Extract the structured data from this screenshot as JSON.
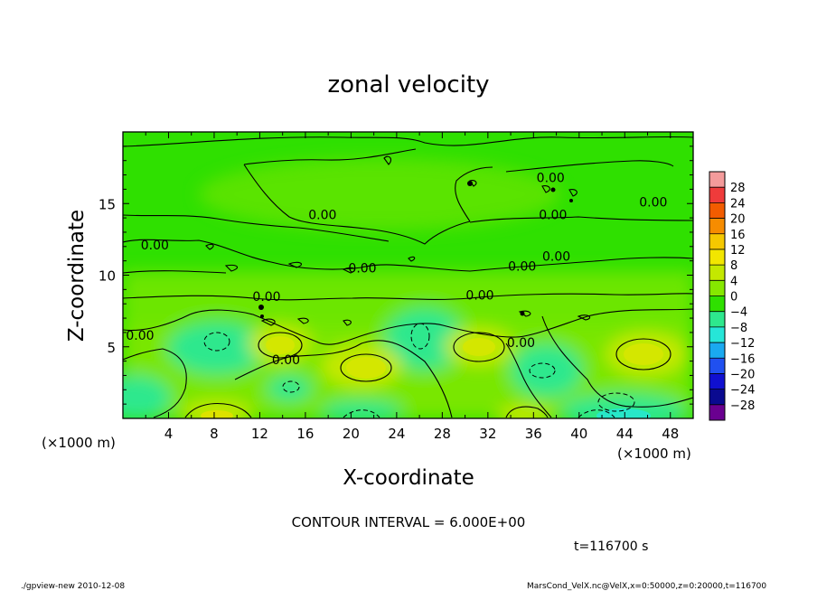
{
  "chart_data": {
    "type": "heatmap",
    "title": "zonal velocity",
    "xlabel": "X-coordinate",
    "ylabel": "Z-coordinate",
    "x_unit_label": "(×1000 m)",
    "y_unit_label": "(×1000 m)",
    "x_ticks": [
      4,
      8,
      12,
      16,
      20,
      24,
      28,
      32,
      36,
      40,
      44,
      48
    ],
    "y_ticks": [
      5,
      10,
      15
    ],
    "xlim": [
      0,
      50
    ],
    "ylim": [
      0,
      20
    ],
    "colorbar": {
      "levels": [
        "28",
        "24",
        "20",
        "16",
        "12",
        "8",
        "4",
        "0",
        "−4",
        "−8",
        "−12",
        "−16",
        "−20",
        "−24",
        "−28"
      ],
      "colors": [
        "#f49b9b",
        "#ef3b3b",
        "#f25c00",
        "#f68c00",
        "#f5c800",
        "#f2e600",
        "#c4e800",
        "#86e800",
        "#2fe000",
        "#2ee88d",
        "#26e6d8",
        "#1aa9f0",
        "#2050f0",
        "#1010d0",
        "#0a0a90",
        "#6a0090"
      ]
    },
    "contour_labels": [
      {
        "text": "0.00",
        "x": 46.5,
        "y": 14.8
      },
      {
        "text": "0.00",
        "x": 17.5,
        "y": 13.9
      },
      {
        "text": "0.00",
        "x": 2.8,
        "y": 11.8
      },
      {
        "text": "0.00",
        "x": 21.0,
        "y": 10.2
      },
      {
        "text": "0.00",
        "x": 38.0,
        "y": 11.0
      },
      {
        "text": "0.00",
        "x": 37.7,
        "y": 13.9
      },
      {
        "text": "0.00",
        "x": 35.0,
        "y": 10.3
      },
      {
        "text": "0.00",
        "x": 12.6,
        "y": 8.2
      },
      {
        "text": "0.00",
        "x": 31.3,
        "y": 8.3
      },
      {
        "text": "0.00",
        "x": 1.5,
        "y": 5.5
      },
      {
        "text": "0.00",
        "x": 14.3,
        "y": 3.8
      },
      {
        "text": "0.00",
        "x": 34.9,
        "y": 5.0
      },
      {
        "text": "0.00",
        "x": 37.5,
        "y": 16.5
      }
    ],
    "contour_interval_text": "CONTOUR INTERVAL = 6.000E+00",
    "time_text": "t=116700 s",
    "footer_left": "./gpview-new  2010-12-08",
    "footer_right": "MarsCond_VelX.nc@VelX,x=0:50000,z=0:20000,t=116700"
  }
}
